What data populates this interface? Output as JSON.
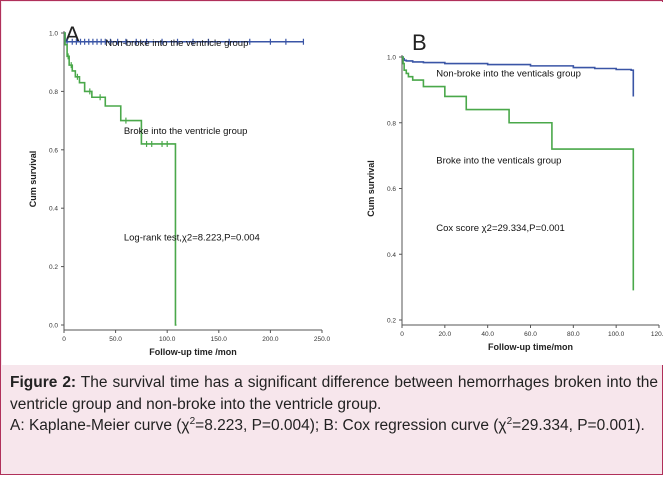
{
  "chart_data": [
    {
      "type": "line",
      "panel_letter": "A",
      "title": "",
      "xlabel": "Follow-up time /mon",
      "ylabel": "Cum survival",
      "xlim": [
        0,
        250
      ],
      "ylim": [
        0,
        1.0
      ],
      "x_ticks": [
        "0",
        "50.0",
        "100.0",
        "150.0",
        "200.0",
        "250.0"
      ],
      "y_ticks": [
        "0.0",
        "0.2",
        "0.4",
        "0.6",
        "0.8",
        "1.0"
      ],
      "annotations": [
        {
          "text": "Non-broke into the ventricle group",
          "x": 40,
          "y": 0.965
        },
        {
          "text": "Broke into the ventricle group",
          "x": 58,
          "y": 0.665
        },
        {
          "text": "Log-rank test,χ2=8.223,P=0.004",
          "x": 58,
          "y": 0.3
        }
      ],
      "series": [
        {
          "name": "Non-broke into the ventricle group",
          "color": "#3a55a6",
          "x": [
            0,
            1,
            232
          ],
          "y": [
            1.0,
            0.97,
            0.97
          ],
          "censored_x": [
            3,
            8,
            12,
            16,
            20,
            24,
            28,
            32,
            36,
            40,
            45,
            52,
            60,
            70,
            80,
            95,
            110,
            125,
            140,
            160,
            180,
            200,
            215,
            232
          ]
        },
        {
          "name": "Broke into the ventricle group",
          "color": "#4aa84a",
          "x": [
            0,
            1,
            3,
            5,
            8,
            11,
            15,
            20,
            27,
            40,
            55,
            75,
            90,
            108,
            109
          ],
          "y": [
            1.0,
            0.96,
            0.92,
            0.89,
            0.87,
            0.85,
            0.83,
            0.8,
            0.78,
            0.75,
            0.7,
            0.62,
            0.62,
            0.0,
            0.0
          ],
          "censored_x": [
            4,
            7,
            13,
            25,
            35,
            60,
            80,
            85,
            95,
            100
          ]
        }
      ]
    },
    {
      "type": "line",
      "panel_letter": "B",
      "title": "",
      "xlabel": "Follow-up time/mon",
      "ylabel": "Cum survival",
      "xlim": [
        0,
        120
      ],
      "ylim": [
        0.2,
        1.0
      ],
      "x_ticks": [
        "0",
        "20.0",
        "40.0",
        "60.0",
        "80.0",
        "100.0",
        "120.0"
      ],
      "y_ticks": [
        "0.2",
        "0.4",
        "0.6",
        "0.8",
        "1.0"
      ],
      "annotations": [
        {
          "text": "Non-broke into the venticals group",
          "x": 16,
          "y": 0.95
        },
        {
          "text": "Broke into the venticals group",
          "x": 16,
          "y": 0.685
        },
        {
          "text": "Cox score χ2=29.334,P=0.001",
          "x": 16,
          "y": 0.48
        }
      ],
      "series": [
        {
          "name": "Non-broke into the venticals group",
          "color": "#3a55a6",
          "x": [
            0,
            0.5,
            1,
            2,
            5,
            10,
            20,
            40,
            60,
            80,
            90,
            100,
            107,
            108
          ],
          "y": [
            1.0,
            0.995,
            0.99,
            0.988,
            0.985,
            0.983,
            0.98,
            0.977,
            0.973,
            0.968,
            0.965,
            0.962,
            0.96,
            0.88
          ],
          "censored_x": []
        },
        {
          "name": "Broke into the venticals group",
          "color": "#4aa84a",
          "x": [
            0,
            0.5,
            1,
            2,
            3,
            5,
            10,
            20,
            30,
            50,
            70,
            108
          ],
          "y": [
            1.0,
            0.98,
            0.96,
            0.95,
            0.94,
            0.93,
            0.91,
            0.88,
            0.84,
            0.8,
            0.72,
            0.29
          ],
          "censored_x": []
        }
      ]
    }
  ],
  "caption": {
    "label": "Figure 2:",
    "text": " The survival time has a significant difference between hemorrhages broken into the ventricle group and non-broke into the ventricle group.",
    "line2_a": "A: Kaplane-Meier curve (χ",
    "line2_sup1": "2",
    "line2_b": "=8.223, P=0.004); B: Cox regression curve (χ",
    "line2_sup2": "2",
    "line2_c": "=29.334, P=0.001)."
  }
}
